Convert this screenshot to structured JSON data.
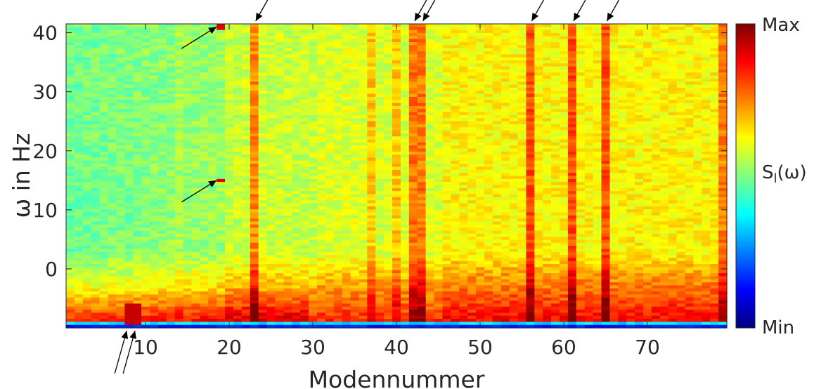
{
  "chart_data": {
    "type": "heatmap",
    "title": "",
    "xlabel": "Modennummer",
    "ylabel": "ω in Hz",
    "xlim": [
      0.5,
      79.5
    ],
    "ylim": [
      -10,
      41.5
    ],
    "x_ticks": [
      10,
      20,
      30,
      40,
      50,
      60,
      70
    ],
    "y_ticks": [
      0,
      10,
      20,
      30,
      40
    ],
    "y_tick_labels": [
      "0",
      "10",
      "20",
      "30",
      "40"
    ],
    "mode_count": 79,
    "colorbar": {
      "label_main": "S",
      "label_sub": "l",
      "label_tail": "(ω)",
      "max_label": "Max",
      "min_label": "Min",
      "colormap": "jet"
    },
    "strong_modes": [
      23,
      42,
      43,
      56,
      61,
      65
    ],
    "weaker_modes": [
      14,
      37,
      40,
      79
    ],
    "hot_spots": [
      {
        "mode": 19,
        "omega": 41
      },
      {
        "mode": 19,
        "omega": 15
      }
    ],
    "arrows_top_modes": [
      23,
      42,
      43,
      56,
      61,
      65
    ],
    "arrows_bottom_modes": [
      8,
      9
    ],
    "arrows_left_targets": [
      {
        "mode": 19,
        "omega": 41
      },
      {
        "mode": 19,
        "omega": 15
      }
    ]
  }
}
